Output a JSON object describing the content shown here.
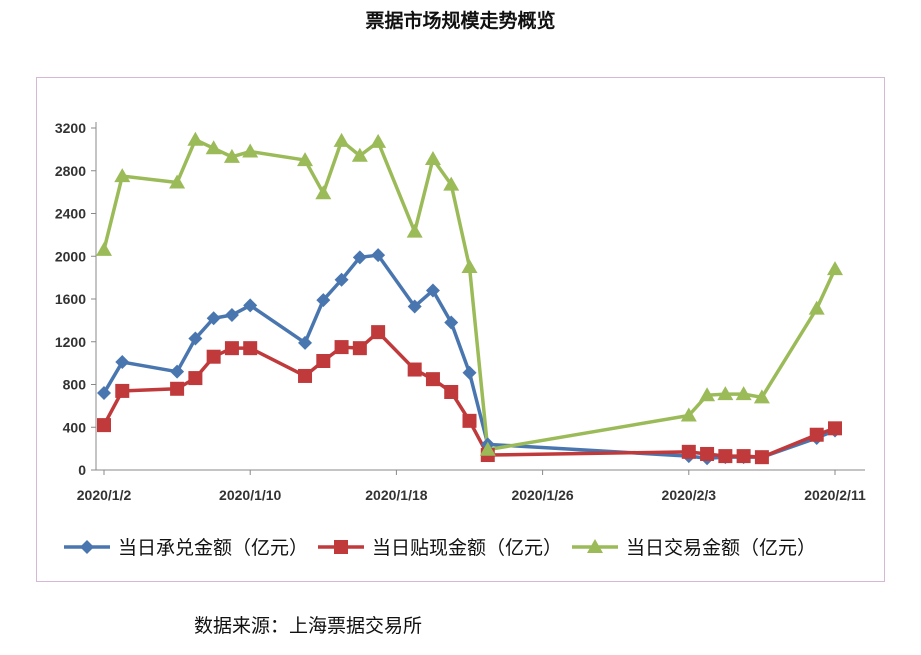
{
  "chart_data": {
    "type": "line",
    "title": "票据市场规模走势概览",
    "xlabel": "",
    "ylabel": "",
    "x_ticks": [
      "2020/1/2",
      "2020/1/10",
      "2020/1/18",
      "2020/1/26",
      "2020/2/3",
      "2020/2/11"
    ],
    "ylim": [
      0,
      3200
    ],
    "y_ticks": [
      0,
      400,
      800,
      1200,
      1600,
      2000,
      2400,
      2800,
      3200
    ],
    "grid": false,
    "legend_position": "bottom",
    "series": [
      {
        "name": "当日承兑金额（亿元）",
        "color": "#4a76b0",
        "marker": "diamond",
        "points": [
          [
            "2020/1/2",
            720
          ],
          [
            "2020/1/3",
            1010
          ],
          [
            "2020/1/6",
            920
          ],
          [
            "2020/1/7",
            1230
          ],
          [
            "2020/1/8",
            1420
          ],
          [
            "2020/1/9",
            1450
          ],
          [
            "2020/1/10",
            1540
          ],
          [
            "2020/1/13",
            1190
          ],
          [
            "2020/1/14",
            1590
          ],
          [
            "2020/1/15",
            1780
          ],
          [
            "2020/1/16",
            1990
          ],
          [
            "2020/1/17",
            2010
          ],
          [
            "2020/1/19",
            1530
          ],
          [
            "2020/1/20",
            1680
          ],
          [
            "2020/1/21",
            1380
          ],
          [
            "2020/1/22",
            910
          ],
          [
            "2020/1/23",
            240
          ],
          [
            "2020/2/3",
            130
          ],
          [
            "2020/2/4",
            110
          ],
          [
            "2020/2/5",
            120
          ],
          [
            "2020/2/6",
            120
          ],
          [
            "2020/2/7",
            120
          ],
          [
            "2020/2/10",
            300
          ],
          [
            "2020/2/11",
            370
          ]
        ]
      },
      {
        "name": "当日贴现金额（亿元）",
        "color": "#c0393b",
        "marker": "square",
        "points": [
          [
            "2020/1/2",
            420
          ],
          [
            "2020/1/3",
            740
          ],
          [
            "2020/1/6",
            760
          ],
          [
            "2020/1/7",
            860
          ],
          [
            "2020/1/8",
            1060
          ],
          [
            "2020/1/9",
            1140
          ],
          [
            "2020/1/10",
            1140
          ],
          [
            "2020/1/13",
            880
          ],
          [
            "2020/1/14",
            1020
          ],
          [
            "2020/1/15",
            1150
          ],
          [
            "2020/1/16",
            1140
          ],
          [
            "2020/1/17",
            1290
          ],
          [
            "2020/1/19",
            940
          ],
          [
            "2020/1/20",
            850
          ],
          [
            "2020/1/21",
            730
          ],
          [
            "2020/1/22",
            460
          ],
          [
            "2020/1/23",
            140
          ],
          [
            "2020/2/3",
            170
          ],
          [
            "2020/2/4",
            150
          ],
          [
            "2020/2/5",
            130
          ],
          [
            "2020/2/6",
            130
          ],
          [
            "2020/2/7",
            120
          ],
          [
            "2020/2/10",
            330
          ],
          [
            "2020/2/11",
            390
          ]
        ]
      },
      {
        "name": "当日交易金额（亿元）",
        "color": "#9bbb59",
        "marker": "triangle",
        "points": [
          [
            "2020/1/2",
            2060
          ],
          [
            "2020/1/3",
            2750
          ],
          [
            "2020/1/6",
            2690
          ],
          [
            "2020/1/7",
            3090
          ],
          [
            "2020/1/8",
            3010
          ],
          [
            "2020/1/9",
            2930
          ],
          [
            "2020/1/10",
            2980
          ],
          [
            "2020/1/13",
            2900
          ],
          [
            "2020/1/14",
            2590
          ],
          [
            "2020/1/15",
            3080
          ],
          [
            "2020/1/16",
            2940
          ],
          [
            "2020/1/17",
            3070
          ],
          [
            "2020/1/19",
            2230
          ],
          [
            "2020/1/20",
            2910
          ],
          [
            "2020/1/21",
            2670
          ],
          [
            "2020/1/22",
            1900
          ],
          [
            "2020/1/23",
            190
          ],
          [
            "2020/2/3",
            510
          ],
          [
            "2020/2/4",
            700
          ],
          [
            "2020/2/5",
            710
          ],
          [
            "2020/2/6",
            710
          ],
          [
            "2020/2/7",
            680
          ],
          [
            "2020/2/10",
            1510
          ],
          [
            "2020/2/11",
            1880
          ]
        ]
      }
    ]
  },
  "source_note": "数据来源：上海票据交易所"
}
